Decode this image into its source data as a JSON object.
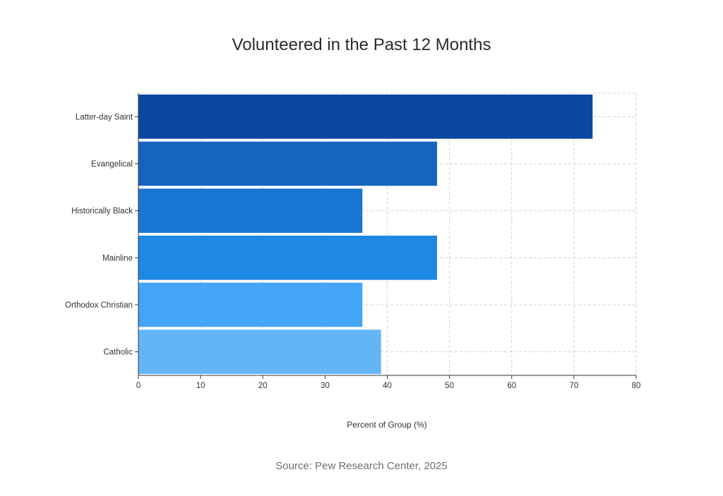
{
  "chart_data": {
    "type": "bar",
    "orientation": "horizontal",
    "title": "Volunteered in the Past 12 Months",
    "categories": [
      "Latter-day Saint",
      "Evangelical",
      "Historically Black",
      "Mainline",
      "Orthodox Christian",
      "Catholic"
    ],
    "values": [
      73,
      48,
      36,
      48,
      36,
      39
    ],
    "colors": [
      "#0d47a1",
      "#1565c0",
      "#1976d2",
      "#1e88e5",
      "#42a5f5",
      "#64b5f6"
    ],
    "xlabel": "Percent of Group (%)",
    "ylabel": "",
    "xlim": [
      0,
      80
    ],
    "xticks": [
      0,
      10,
      20,
      30,
      40,
      50,
      60,
      70,
      80
    ],
    "grid": true,
    "source": "Source: Pew Research Center, 2025"
  }
}
